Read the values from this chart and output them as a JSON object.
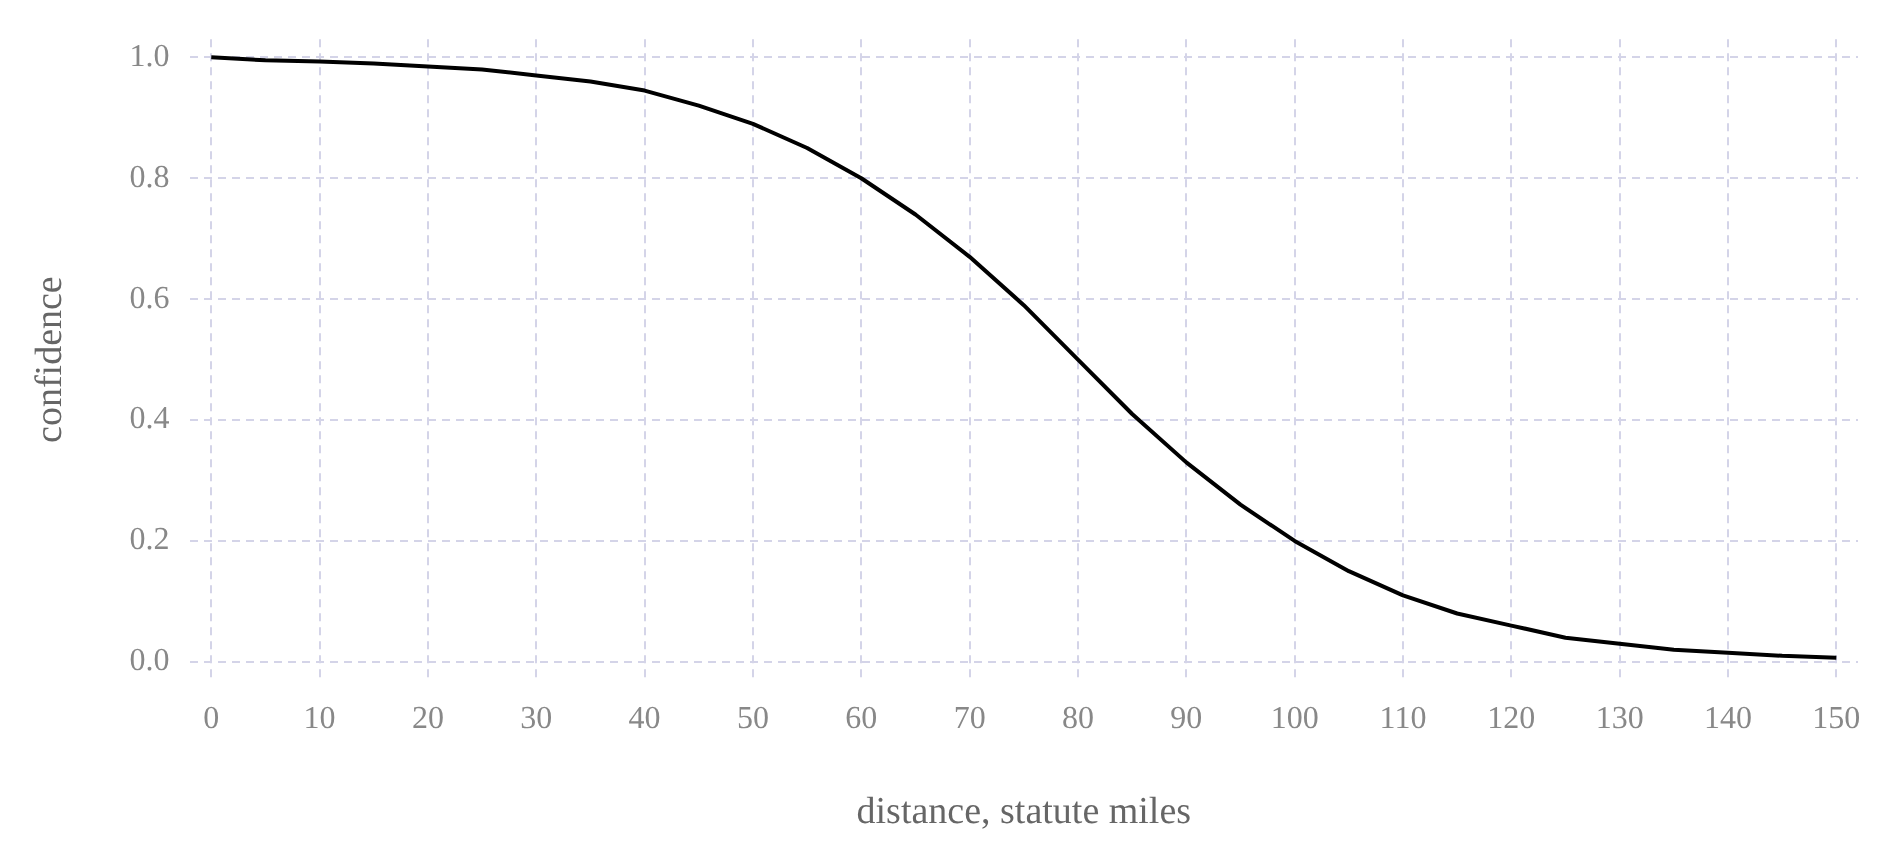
{
  "chart_data": {
    "type": "line",
    "xlabel": "distance, statute miles",
    "ylabel": "confidence",
    "x": [
      0,
      5,
      10,
      15,
      20,
      25,
      30,
      35,
      40,
      45,
      50,
      55,
      60,
      65,
      70,
      75,
      80,
      85,
      90,
      95,
      100,
      105,
      110,
      115,
      120,
      125,
      130,
      135,
      140,
      145,
      150
    ],
    "series": [
      {
        "color": "#000000",
        "values": [
          1.0,
          0.995,
          0.993,
          0.99,
          0.985,
          0.98,
          0.97,
          0.96,
          0.945,
          0.92,
          0.89,
          0.85,
          0.8,
          0.74,
          0.67,
          0.59,
          0.5,
          0.41,
          0.33,
          0.26,
          0.2,
          0.15,
          0.11,
          0.08,
          0.06,
          0.04,
          0.03,
          0.02,
          0.015,
          0.01,
          0.007
        ]
      }
    ],
    "xlim": [
      -2,
      152
    ],
    "ylim": [
      -0.03,
      1.03
    ],
    "xticks": [
      0,
      10,
      20,
      30,
      40,
      50,
      60,
      70,
      80,
      90,
      100,
      110,
      120,
      130,
      140,
      150
    ],
    "yticks": [
      {
        "value": 0,
        "label": "0.0"
      },
      {
        "value": 0.2,
        "label": "0.2"
      },
      {
        "value": 0.4,
        "label": "0.4"
      },
      {
        "value": 0.6,
        "label": "0.6"
      },
      {
        "value": 0.8,
        "label": "0.8"
      },
      {
        "value": 1,
        "label": "1.0"
      }
    ],
    "grid": true,
    "legend": false,
    "marker": "none",
    "line_style": "solid"
  }
}
